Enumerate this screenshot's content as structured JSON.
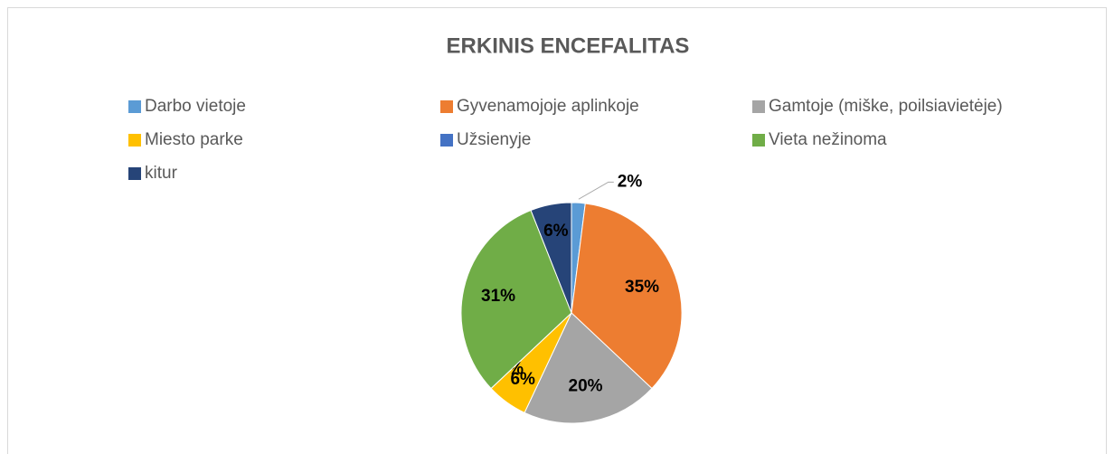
{
  "chart_data": {
    "type": "pie",
    "title": "ERKINIS ENCEFALITAS",
    "categories": [
      "Darbo vietoje",
      "Gyvenamojoje aplinkoje",
      "Gamtoje (miške, poilsiavietėje)",
      "Miesto parke",
      "Užsienyje",
      "Vieta nežinoma",
      "kitur"
    ],
    "values": [
      2,
      35,
      20,
      6,
      0,
      31,
      6
    ],
    "value_labels": [
      "2%",
      "35%",
      "20%",
      "6%",
      "0%",
      "31%",
      "6%"
    ],
    "colors": [
      "#5b9bd5",
      "#ed7d31",
      "#a5a5a5",
      "#ffc000",
      "#4472c4",
      "#70ad47",
      "#264478"
    ],
    "legend": "top"
  }
}
